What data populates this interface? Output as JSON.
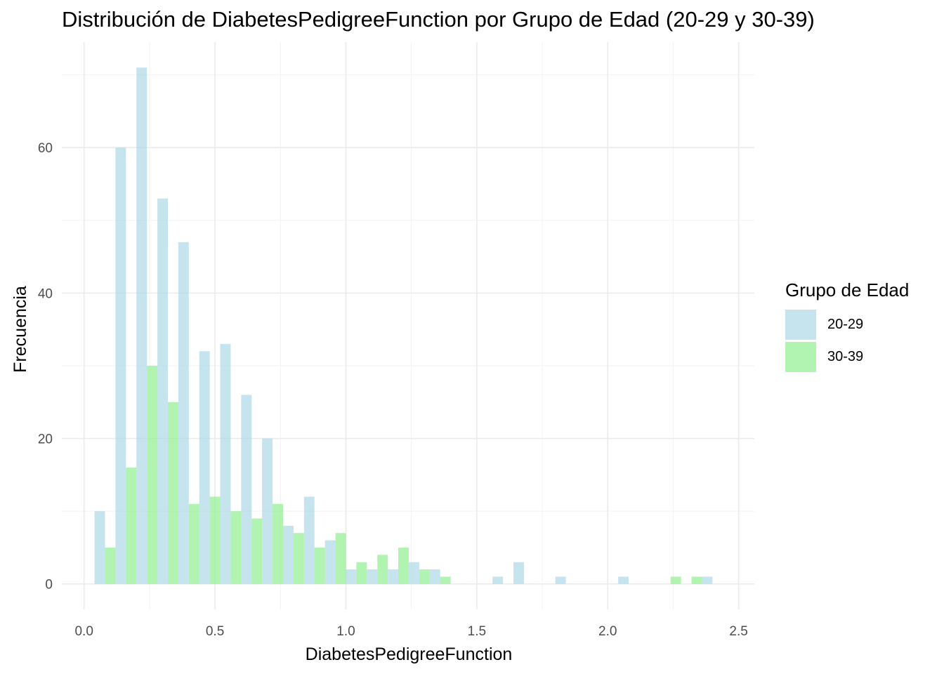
{
  "chart_data": {
    "type": "bar",
    "title": "Distribución de DiabetesPedigreeFunction por Grupo de Edad (20-29 y 30-39)",
    "xlabel": "DiabetesPedigreeFunction",
    "ylabel": "Frecuencia",
    "xlim": [
      -0.085,
      2.56
    ],
    "ylim": [
      -3.5,
      74.5
    ],
    "x_ticks": [
      0.0,
      0.5,
      1.0,
      1.5,
      2.0,
      2.5
    ],
    "x_tick_labels": [
      "0.0",
      "0.5",
      "1.0",
      "1.5",
      "2.0",
      "2.5"
    ],
    "y_ticks": [
      0,
      20,
      40,
      60
    ],
    "y_tick_labels": [
      "0",
      "20",
      "40",
      "60"
    ],
    "bin_width": 0.08,
    "x": [
      0.08,
      0.16,
      0.24,
      0.32,
      0.4,
      0.48,
      0.56,
      0.64,
      0.72,
      0.8,
      0.88,
      0.96,
      1.04,
      1.12,
      1.2,
      1.28,
      1.36,
      1.44,
      1.52,
      1.6,
      1.68,
      1.76,
      1.84,
      1.92,
      2.0,
      2.08,
      2.16,
      2.24,
      2.32,
      2.4
    ],
    "series": [
      {
        "name": "20-29",
        "color": "#add8e6",
        "values": [
          10,
          60,
          71,
          53,
          47,
          32,
          33,
          26,
          20,
          8,
          12,
          6,
          2,
          2,
          2,
          3,
          2,
          0,
          0,
          1,
          3,
          0,
          1,
          0,
          0,
          1,
          0,
          0,
          0,
          1
        ]
      },
      {
        "name": "30-39",
        "color": "#90ee90",
        "values": [
          5,
          16,
          30,
          25,
          11,
          12,
          10,
          9,
          11,
          7,
          5,
          7,
          3,
          4,
          5,
          2,
          1,
          0,
          0,
          0,
          0,
          0,
          0,
          0,
          0,
          0,
          0,
          1,
          1,
          0
        ]
      }
    ],
    "grid": true,
    "legend": {
      "title": "Grupo de Edad",
      "position": "right"
    }
  }
}
